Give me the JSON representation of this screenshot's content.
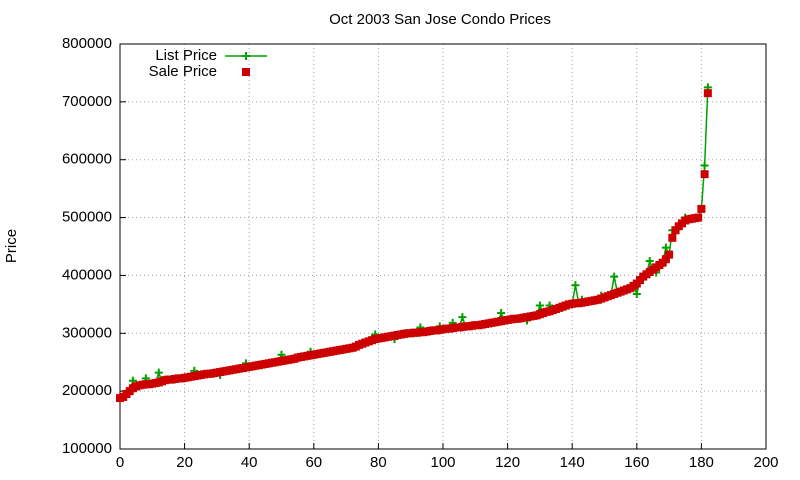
{
  "chart_data": {
    "type": "line",
    "title": "Oct 2003 San Jose Condo Prices",
    "ylabel": "Price",
    "xlim": [
      0,
      200
    ],
    "xticks": [
      0,
      20,
      40,
      60,
      80,
      100,
      120,
      140,
      160,
      180,
      200
    ],
    "ylim": [
      100000,
      800000
    ],
    "yticks": [
      100000,
      200000,
      300000,
      400000,
      500000,
      600000,
      700000,
      800000
    ],
    "grid": true,
    "legend": "top-left",
    "x": [
      0,
      1,
      2,
      3,
      4,
      5,
      6,
      7,
      8,
      9,
      10,
      11,
      12,
      13,
      14,
      15,
      16,
      17,
      18,
      19,
      20,
      21,
      22,
      23,
      24,
      25,
      26,
      27,
      28,
      29,
      30,
      31,
      32,
      33,
      34,
      35,
      36,
      37,
      38,
      39,
      40,
      41,
      42,
      43,
      44,
      45,
      46,
      47,
      48,
      49,
      50,
      51,
      52,
      53,
      54,
      55,
      56,
      57,
      58,
      59,
      60,
      61,
      62,
      63,
      64,
      65,
      66,
      67,
      68,
      69,
      70,
      71,
      72,
      73,
      74,
      75,
      76,
      77,
      78,
      79,
      80,
      81,
      82,
      83,
      84,
      85,
      86,
      87,
      88,
      89,
      90,
      91,
      92,
      93,
      94,
      95,
      96,
      97,
      98,
      99,
      100,
      101,
      102,
      103,
      104,
      105,
      106,
      107,
      108,
      109,
      110,
      111,
      112,
      113,
      114,
      115,
      116,
      117,
      118,
      119,
      120,
      121,
      122,
      123,
      124,
      125,
      126,
      127,
      128,
      129,
      130,
      131,
      132,
      133,
      134,
      135,
      136,
      137,
      138,
      139,
      140,
      141,
      142,
      143,
      144,
      145,
      146,
      147,
      148,
      149,
      150,
      151,
      152,
      153,
      154,
      155,
      156,
      157,
      158,
      159,
      160,
      161,
      162,
      163,
      164,
      165,
      166,
      167,
      168,
      169,
      170,
      171,
      172,
      173,
      174,
      175,
      176,
      177,
      178,
      179,
      180,
      181,
      182
    ],
    "series": [
      {
        "name": "List Price",
        "color": "#00a000",
        "marker": "plus",
        "line": true,
        "values": [
          188000,
          190000,
          195000,
          200000,
          218000,
          208000,
          210000,
          211000,
          222000,
          212000,
          213000,
          214000,
          232000,
          217000,
          219000,
          220000,
          220000,
          221000,
          222000,
          222000,
          223000,
          224000,
          225000,
          235000,
          227000,
          228000,
          229000,
          230000,
          230000,
          231000,
          232000,
          228000,
          234000,
          235000,
          236000,
          237000,
          238000,
          239000,
          240000,
          248000,
          242000,
          243000,
          244000,
          245000,
          246000,
          247000,
          248000,
          249000,
          250000,
          251000,
          263000,
          253000,
          254000,
          255000,
          256000,
          258000,
          259000,
          260000,
          261000,
          268000,
          263000,
          264000,
          265000,
          266000,
          267000,
          268000,
          269000,
          270000,
          271000,
          272000,
          273000,
          274000,
          275000,
          277000,
          280000,
          282000,
          284000,
          286000,
          288000,
          298000,
          291000,
          292000,
          293000,
          294000,
          295000,
          290000,
          297000,
          298000,
          299000,
          300000,
          300000,
          301000,
          301000,
          310000,
          302000,
          303000,
          304000,
          305000,
          305000,
          312000,
          307000,
          308000,
          308000,
          318000,
          310000,
          310000,
          328000,
          312000,
          312000,
          313000,
          314000,
          314000,
          315000,
          316000,
          317000,
          318000,
          319000,
          320000,
          335000,
          322000,
          323000,
          324000,
          325000,
          325000,
          326000,
          327000,
          322000,
          329000,
          330000,
          331000,
          348000,
          335000,
          337000,
          348000,
          340000,
          342000,
          344000,
          346000,
          348000,
          350000,
          351000,
          383000,
          352000,
          358000,
          354000,
          355000,
          356000,
          357000,
          358000,
          365000,
          362000,
          364000,
          366000,
          398000,
          370000,
          372000,
          374000,
          376000,
          378000,
          382000,
          368000,
          392000,
          398000,
          402000,
          425000,
          410000,
          405000,
          418000,
          422000,
          448000,
          436000,
          478000,
          478000,
          485000,
          490000,
          500000,
          497000,
          498000,
          499000,
          500000,
          515000,
          590000,
          725000
        ]
      },
      {
        "name": "Sale Price",
        "color": "#cc0000",
        "marker": "square",
        "line": false,
        "values": [
          188000,
          190000,
          195000,
          200000,
          205000,
          208000,
          210000,
          211000,
          212000,
          212000,
          213000,
          214000,
          215000,
          217000,
          219000,
          220000,
          220000,
          221000,
          222000,
          222000,
          223000,
          224000,
          225000,
          226000,
          227000,
          228000,
          229000,
          230000,
          230000,
          231000,
          232000,
          233000,
          234000,
          235000,
          236000,
          237000,
          238000,
          239000,
          240000,
          241000,
          242000,
          243000,
          244000,
          245000,
          246000,
          247000,
          248000,
          249000,
          250000,
          251000,
          252000,
          253000,
          254000,
          255000,
          256000,
          258000,
          259000,
          260000,
          261000,
          262000,
          263000,
          264000,
          265000,
          266000,
          267000,
          268000,
          269000,
          270000,
          271000,
          272000,
          273000,
          274000,
          275000,
          277000,
          280000,
          282000,
          284000,
          286000,
          288000,
          290000,
          291000,
          292000,
          293000,
          294000,
          295000,
          296000,
          297000,
          298000,
          299000,
          300000,
          300000,
          301000,
          301000,
          302000,
          302000,
          303000,
          304000,
          305000,
          305000,
          306000,
          307000,
          308000,
          308000,
          309000,
          310000,
          310000,
          311000,
          312000,
          312000,
          313000,
          314000,
          314000,
          315000,
          316000,
          317000,
          318000,
          319000,
          320000,
          321000,
          322000,
          323000,
          324000,
          325000,
          325000,
          326000,
          327000,
          328000,
          329000,
          330000,
          331000,
          333000,
          335000,
          337000,
          338000,
          340000,
          342000,
          344000,
          346000,
          348000,
          350000,
          351000,
          352000,
          352000,
          353000,
          354000,
          355000,
          356000,
          357000,
          358000,
          360000,
          362000,
          364000,
          366000,
          368000,
          370000,
          372000,
          374000,
          376000,
          378000,
          382000,
          386000,
          392000,
          398000,
          402000,
          406000,
          410000,
          414000,
          418000,
          422000,
          428000,
          436000,
          465000,
          478000,
          485000,
          490000,
          495000,
          497000,
          498000,
          499000,
          500000,
          515000,
          575000,
          715000
        ]
      }
    ]
  }
}
